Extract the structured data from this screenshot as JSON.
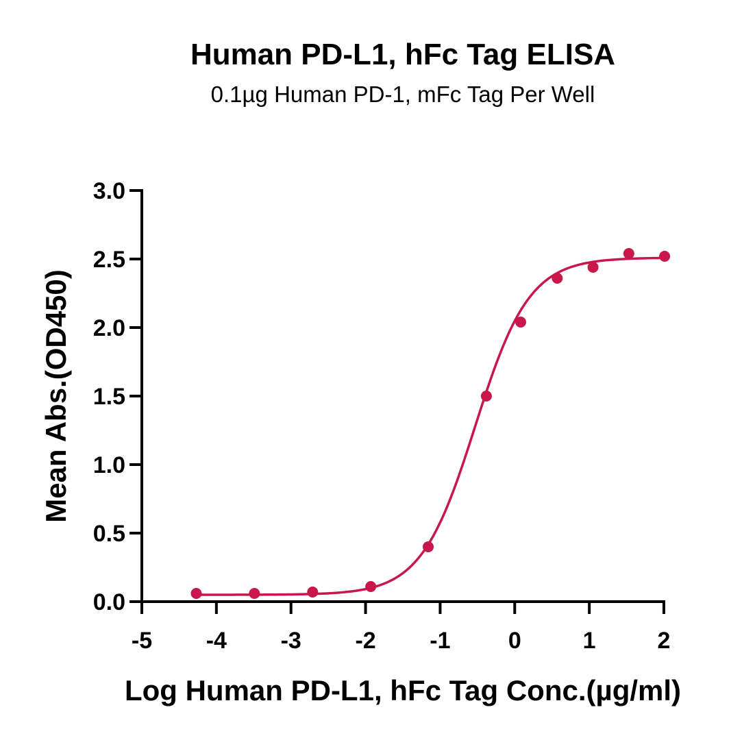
{
  "chart_data": {
    "type": "scatter",
    "title": "Human PD-L1, hFc Tag ELISA",
    "subtitle": "0.1µg Human PD-1, mFc Tag Per Well",
    "xlabel": "Log Human PD-L1, hFc Tag Conc.(µg/ml)",
    "ylabel": "Mean Abs.(OD450)",
    "xlim": [
      -5,
      2
    ],
    "ylim": [
      0,
      3
    ],
    "x_ticks": [
      -5,
      -4,
      -3,
      -2,
      -1,
      0,
      1,
      2
    ],
    "x_tick_labels": [
      "-5",
      "-4",
      "-3",
      "-2",
      "-1",
      "0",
      "1",
      "2"
    ],
    "y_ticks": [
      0,
      0.5,
      1,
      1.5,
      2,
      2.5,
      3
    ],
    "y_tick_labels": [
      "0.0",
      "0.5",
      "1.0",
      "1.5",
      "2.0",
      "2.5",
      "3.0"
    ],
    "grid": false,
    "color": "#c8174a",
    "series": [
      {
        "x": [
          -4.27,
          -3.49,
          -2.71,
          -1.93,
          -1.16,
          -0.38,
          0.08,
          0.57,
          1.05,
          1.53,
          2.01
        ],
        "y": [
          0.06,
          0.06,
          0.07,
          0.11,
          0.4,
          1.5,
          2.04,
          2.36,
          2.44,
          2.54,
          2.52
        ]
      }
    ],
    "fit": {
      "bottom": 0.05,
      "top": 2.51,
      "logEC50": -0.53,
      "hill": 1.2
    }
  }
}
